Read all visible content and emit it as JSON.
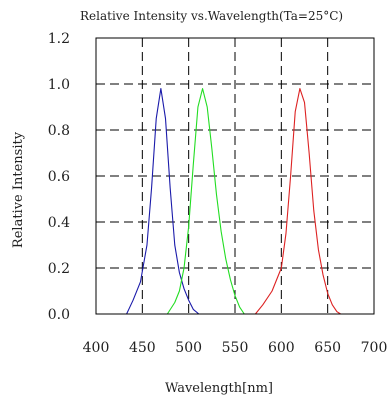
{
  "chart_data": {
    "type": "line",
    "title": "Relative Intensity vs.Wavelength(Ta=25°C)",
    "xlabel": "Wavelength[nm]",
    "ylabel": "Relative Intensity",
    "xlim": [
      400,
      700
    ],
    "ylim": [
      0,
      1.2
    ],
    "x_ticks": [
      "400",
      "450",
      "500",
      "550",
      "600",
      "650",
      "700"
    ],
    "y_ticks": [
      "0.0",
      "0.2",
      "0.4",
      "0.6",
      "0.8",
      "1.0",
      "1.2"
    ],
    "grid": true,
    "grid_style": "dashed",
    "series": [
      {
        "color": "#1a1aaa",
        "x": [
          433,
          440,
          448,
          455,
          460,
          465,
          470,
          475,
          480,
          485,
          490,
          495,
          500,
          505,
          511
        ],
        "y": [
          0.0,
          0.06,
          0.14,
          0.3,
          0.55,
          0.85,
          0.98,
          0.85,
          0.55,
          0.3,
          0.18,
          0.11,
          0.06,
          0.02,
          0.0
        ]
      },
      {
        "color": "#22dd22",
        "x": [
          477,
          485,
          490,
          495,
          500,
          505,
          510,
          515,
          520,
          525,
          530,
          535,
          540,
          545,
          550,
          555,
          560
        ],
        "y": [
          0.0,
          0.05,
          0.1,
          0.2,
          0.38,
          0.65,
          0.9,
          0.98,
          0.9,
          0.72,
          0.52,
          0.36,
          0.24,
          0.15,
          0.08,
          0.03,
          0.0
        ]
      },
      {
        "color": "#dd2222",
        "x": [
          572,
          580,
          590,
          600,
          605,
          610,
          615,
          620,
          625,
          630,
          635,
          640,
          645,
          650,
          655,
          660,
          664
        ],
        "y": [
          0.0,
          0.04,
          0.1,
          0.2,
          0.35,
          0.6,
          0.88,
          0.98,
          0.92,
          0.7,
          0.45,
          0.28,
          0.17,
          0.09,
          0.04,
          0.01,
          0.0
        ]
      }
    ]
  },
  "colors": {
    "frame": "#000000",
    "grid": "#000000"
  }
}
